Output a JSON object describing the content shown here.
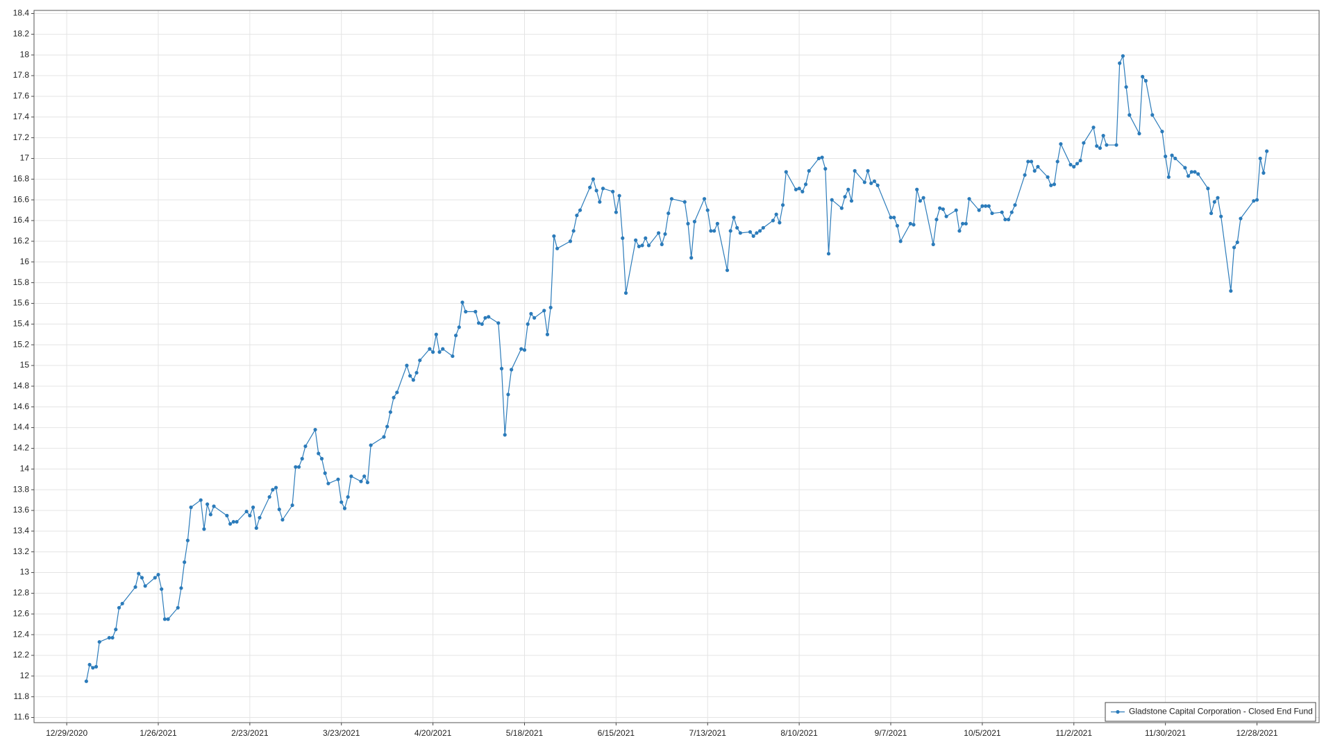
{
  "chart_data": {
    "type": "line",
    "xlim": [
      "12/19/2020",
      "1/16/2022"
    ],
    "xticks": [
      "12/29/2020",
      "1/26/2021",
      "2/23/2021",
      "3/23/2021",
      "4/20/2021",
      "5/18/2021",
      "6/15/2021",
      "7/13/2021",
      "8/10/2021",
      "9/7/2021",
      "10/5/2021",
      "11/2/2021",
      "11/30/2021",
      "12/28/2021"
    ],
    "ylim": [
      11.55,
      18.43
    ],
    "yticks": [
      11.6,
      11.8,
      12,
      12.2,
      12.4,
      12.6,
      12.8,
      13,
      13.2,
      13.4,
      13.6,
      13.8,
      14,
      14.2,
      14.4,
      14.6,
      14.8,
      15,
      15.2,
      15.4,
      15.6,
      15.8,
      16,
      16.2,
      16.4,
      16.6,
      16.8,
      17,
      17.2,
      17.4,
      17.6,
      17.8,
      18,
      18.2,
      18.4
    ],
    "grid": true,
    "legend": "lower right",
    "x": [
      "1/4/2021",
      "1/5/2021",
      "1/6/2021",
      "1/7/2021",
      "1/8/2021",
      "1/11/2021",
      "1/12/2021",
      "1/13/2021",
      "1/14/2021",
      "1/15/2021",
      "1/19/2021",
      "1/20/2021",
      "1/21/2021",
      "1/22/2021",
      "1/25/2021",
      "1/26/2021",
      "1/27/2021",
      "1/28/2021",
      "1/29/2021",
      "2/1/2021",
      "2/2/2021",
      "2/3/2021",
      "2/4/2021",
      "2/5/2021",
      "2/8/2021",
      "2/9/2021",
      "2/10/2021",
      "2/11/2021",
      "2/12/2021",
      "2/16/2021",
      "2/17/2021",
      "2/18/2021",
      "2/19/2021",
      "2/22/2021",
      "2/23/2021",
      "2/24/2021",
      "2/25/2021",
      "2/26/2021",
      "3/1/2021",
      "3/2/2021",
      "3/3/2021",
      "3/4/2021",
      "3/5/2021",
      "3/8/2021",
      "3/9/2021",
      "3/10/2021",
      "3/11/2021",
      "3/12/2021",
      "3/15/2021",
      "3/16/2021",
      "3/17/2021",
      "3/18/2021",
      "3/19/2021",
      "3/22/2021",
      "3/23/2021",
      "3/24/2021",
      "3/25/2021",
      "3/26/2021",
      "3/29/2021",
      "3/30/2021",
      "3/31/2021",
      "4/1/2021",
      "4/5/2021",
      "4/6/2021",
      "4/7/2021",
      "4/8/2021",
      "4/9/2021",
      "4/12/2021",
      "4/13/2021",
      "4/14/2021",
      "4/15/2021",
      "4/16/2021",
      "4/19/2021",
      "4/20/2021",
      "4/21/2021",
      "4/22/2021",
      "4/23/2021",
      "4/26/2021",
      "4/27/2021",
      "4/28/2021",
      "4/29/2021",
      "4/30/2021",
      "5/3/2021",
      "5/4/2021",
      "5/5/2021",
      "5/6/2021",
      "5/7/2021",
      "5/10/2021",
      "5/11/2021",
      "5/12/2021",
      "5/13/2021",
      "5/14/2021",
      "5/17/2021",
      "5/18/2021",
      "5/19/2021",
      "5/20/2021",
      "5/21/2021",
      "5/24/2021",
      "5/25/2021",
      "5/26/2021",
      "5/27/2021",
      "5/28/2021",
      "6/1/2021",
      "6/2/2021",
      "6/3/2021",
      "6/4/2021",
      "6/7/2021",
      "6/8/2021",
      "6/9/2021",
      "6/10/2021",
      "6/11/2021",
      "6/14/2021",
      "6/15/2021",
      "6/16/2021",
      "6/17/2021",
      "6/18/2021",
      "6/21/2021",
      "6/22/2021",
      "6/23/2021",
      "6/24/2021",
      "6/25/2021",
      "6/28/2021",
      "6/29/2021",
      "6/30/2021",
      "7/1/2021",
      "7/2/2021",
      "7/6/2021",
      "7/7/2021",
      "7/8/2021",
      "7/9/2021",
      "7/12/2021",
      "7/13/2021",
      "7/14/2021",
      "7/15/2021",
      "7/16/2021",
      "7/19/2021",
      "7/20/2021",
      "7/21/2021",
      "7/22/2021",
      "7/23/2021",
      "7/26/2021",
      "7/27/2021",
      "7/28/2021",
      "7/29/2021",
      "7/30/2021",
      "8/2/2021",
      "8/3/2021",
      "8/4/2021",
      "8/5/2021",
      "8/6/2021",
      "8/9/2021",
      "8/10/2021",
      "8/11/2021",
      "8/12/2021",
      "8/13/2021",
      "8/16/2021",
      "8/17/2021",
      "8/18/2021",
      "8/19/2021",
      "8/20/2021",
      "8/23/2021",
      "8/24/2021",
      "8/25/2021",
      "8/26/2021",
      "8/27/2021",
      "8/30/2021",
      "8/31/2021",
      "9/1/2021",
      "9/2/2021",
      "9/3/2021",
      "9/7/2021",
      "9/8/2021",
      "9/9/2021",
      "9/10/2021",
      "9/13/2021",
      "9/14/2021",
      "9/15/2021",
      "9/16/2021",
      "9/17/2021",
      "9/20/2021",
      "9/21/2021",
      "9/22/2021",
      "9/23/2021",
      "9/24/2021",
      "9/27/2021",
      "9/28/2021",
      "9/29/2021",
      "9/30/2021",
      "10/1/2021",
      "10/4/2021",
      "10/5/2021",
      "10/6/2021",
      "10/7/2021",
      "10/8/2021",
      "10/11/2021",
      "10/12/2021",
      "10/13/2021",
      "10/14/2021",
      "10/15/2021",
      "10/18/2021",
      "10/19/2021",
      "10/20/2021",
      "10/21/2021",
      "10/22/2021",
      "10/25/2021",
      "10/26/2021",
      "10/27/2021",
      "10/28/2021",
      "10/29/2021",
      "11/1/2021",
      "11/2/2021",
      "11/3/2021",
      "11/4/2021",
      "11/5/2021",
      "11/8/2021",
      "11/9/2021",
      "11/10/2021",
      "11/11/2021",
      "11/12/2021",
      "11/15/2021",
      "11/16/2021",
      "11/17/2021",
      "11/18/2021",
      "11/19/2021",
      "11/22/2021",
      "11/23/2021",
      "11/24/2021",
      "11/26/2021",
      "11/29/2021",
      "11/30/2021",
      "12/1/2021",
      "12/2/2021",
      "12/3/2021",
      "12/6/2021",
      "12/7/2021",
      "12/8/2021",
      "12/9/2021",
      "12/10/2021",
      "12/13/2021",
      "12/14/2021",
      "12/15/2021",
      "12/16/2021",
      "12/17/2021",
      "12/20/2021",
      "12/21/2021",
      "12/22/2021",
      "12/23/2021",
      "12/27/2021",
      "12/28/2021",
      "12/29/2021",
      "12/30/2021",
      "12/31/2021"
    ],
    "series": [
      {
        "name": "Gladstone Capital Corporation - Closed End Fund",
        "color": "#2b7bba",
        "values": [
          11.95,
          12.11,
          12.08,
          12.09,
          12.33,
          12.37,
          12.37,
          12.45,
          12.66,
          12.7,
          12.86,
          12.99,
          12.95,
          12.87,
          12.95,
          12.98,
          12.84,
          12.55,
          12.55,
          12.66,
          12.85,
          13.1,
          13.31,
          13.63,
          13.7,
          13.42,
          13.66,
          13.56,
          13.64,
          13.55,
          13.47,
          13.49,
          13.49,
          13.59,
          13.55,
          13.63,
          13.43,
          13.53,
          13.73,
          13.8,
          13.82,
          13.61,
          13.51,
          13.65,
          14.02,
          14.02,
          14.1,
          14.22,
          14.38,
          14.15,
          14.1,
          13.96,
          13.86,
          13.9,
          13.68,
          13.62,
          13.73,
          13.93,
          13.88,
          13.93,
          13.87,
          14.23,
          14.31,
          14.41,
          14.55,
          14.69,
          14.74,
          15.0,
          14.9,
          14.86,
          14.93,
          15.05,
          15.16,
          15.13,
          15.3,
          15.13,
          15.16,
          15.09,
          15.29,
          15.37,
          15.61,
          15.52,
          15.52,
          15.41,
          15.4,
          15.46,
          15.47,
          15.41,
          14.97,
          14.33,
          14.72,
          14.96,
          15.16,
          15.15,
          15.4,
          15.5,
          15.46,
          15.53,
          15.3,
          15.56,
          16.25,
          16.13,
          16.2,
          16.3,
          16.45,
          16.5,
          16.72,
          16.8,
          16.69,
          16.58,
          16.71,
          16.68,
          16.48,
          16.64,
          16.23,
          15.7,
          16.21,
          16.15,
          16.16,
          16.23,
          16.16,
          16.28,
          16.17,
          16.27,
          16.47,
          16.61,
          16.58,
          16.37,
          16.04,
          16.39,
          16.61,
          16.5,
          16.3,
          16.3,
          16.37,
          15.92,
          16.3,
          16.43,
          16.33,
          16.28,
          16.29,
          16.25,
          16.28,
          16.3,
          16.33,
          16.4,
          16.46,
          16.38,
          16.55,
          16.87,
          16.7,
          16.71,
          16.68,
          16.75,
          16.88,
          17.0,
          17.01,
          16.9,
          16.08,
          16.6,
          16.52,
          16.63,
          16.7,
          16.59,
          16.88,
          16.77,
          16.88,
          16.76,
          16.78,
          16.74,
          16.43,
          16.43,
          16.35,
          16.2,
          16.37,
          16.36,
          16.7,
          16.59,
          16.62,
          16.17,
          16.41,
          16.52,
          16.51,
          16.44,
          16.5,
          16.3,
          16.37,
          16.37,
          16.61,
          16.5,
          16.54,
          16.54,
          16.54,
          16.47,
          16.48,
          16.41,
          16.41,
          16.48,
          16.55,
          16.84,
          16.97,
          16.97,
          16.88,
          16.92,
          16.82,
          16.74,
          16.75,
          16.97,
          17.14,
          16.94,
          16.92,
          16.95,
          16.98,
          17.15,
          17.3,
          17.12,
          17.1,
          17.22,
          17.13,
          17.13,
          17.92,
          17.99,
          17.69,
          17.42,
          17.24,
          17.79,
          17.75,
          17.42,
          17.26,
          17.02,
          16.82,
          17.03,
          17.0,
          16.91,
          16.83,
          16.87,
          16.87,
          16.85,
          16.71,
          16.47,
          16.58,
          16.62,
          16.44,
          15.72,
          16.14,
          16.19,
          16.42,
          16.59,
          16.6,
          17.0,
          16.86,
          17.07
        ]
      }
    ]
  }
}
